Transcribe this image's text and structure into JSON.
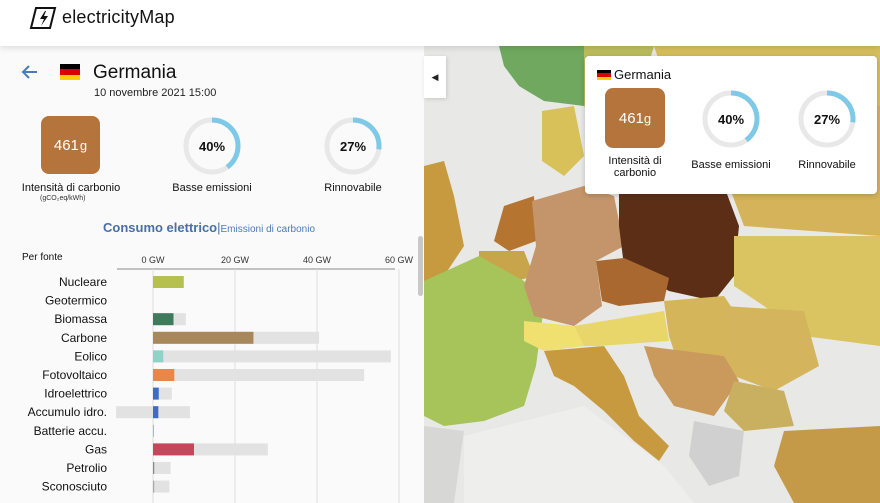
{
  "app": {
    "title": "electricityMap"
  },
  "zone": {
    "country": "Germania",
    "datetime": "10 novembre 2021 15:00",
    "flag_colors": [
      "#000000",
      "#dd0000",
      "#ffce00"
    ]
  },
  "metrics": {
    "carbon_intensity": {
      "value": "461",
      "unit": "g",
      "label": "Intensità di carbonio",
      "sublabel": "(gCO₂eq/kWh)"
    },
    "low_carbon": {
      "value": "40%",
      "fraction": 0.4,
      "label": "Basse emissioni"
    },
    "renewable": {
      "value": "27%",
      "fraction": 0.27,
      "label": "Rinnovabile"
    }
  },
  "tabs": {
    "consumption": "Consumo elettrico",
    "separator": "|",
    "emissions": "Emissioni di carbonio"
  },
  "chart_data": {
    "type": "bar",
    "title": "Per fonte",
    "axis_ticks": [
      "0 GW",
      "20 GW",
      "40 GW",
      "60 GW"
    ],
    "xlim": [
      0,
      60
    ],
    "categories": [
      "Nucleare",
      "Geotermico",
      "Biomassa",
      "Carbone",
      "Eolico",
      "Fotovoltaico",
      "Idroelettrico",
      "Accumulo idro.",
      "Batterie accu.",
      "Gas",
      "Petrolio",
      "Sconosciuto"
    ],
    "production_gw": [
      7.5,
      0,
      5,
      24.5,
      2.5,
      5.2,
      1.4,
      1.3,
      0.1,
      10,
      0.3,
      0.3
    ],
    "capacity_gw": [
      7.5,
      0,
      8,
      40.5,
      58,
      51.5,
      4.6,
      [
        -9,
        9
      ],
      0.2,
      28,
      4.3,
      4
    ],
    "colors": [
      "#b5c04e",
      "#b5c04e",
      "#3f7a5a",
      "#a8875a",
      "#8fd3c8",
      "#e8874a",
      "#3e6bc4",
      "#3e6bc4",
      "#3e6bc4",
      "#c4485c",
      "#888888",
      "#aaaaaa"
    ]
  },
  "tooltip": {
    "country": "Germania",
    "carbon_value": "461",
    "carbon_unit": "g",
    "carbon_label": "Intensità di carbonio",
    "low_carbon_value": "40%",
    "low_carbon_label": "Basse emissioni",
    "renewable_value": "27%",
    "renewable_label": "Rinnovabile"
  },
  "colors": {
    "accent": "#4a7bb8",
    "carbon_box": "#b5743b",
    "gauge": "#7ec8e8"
  }
}
